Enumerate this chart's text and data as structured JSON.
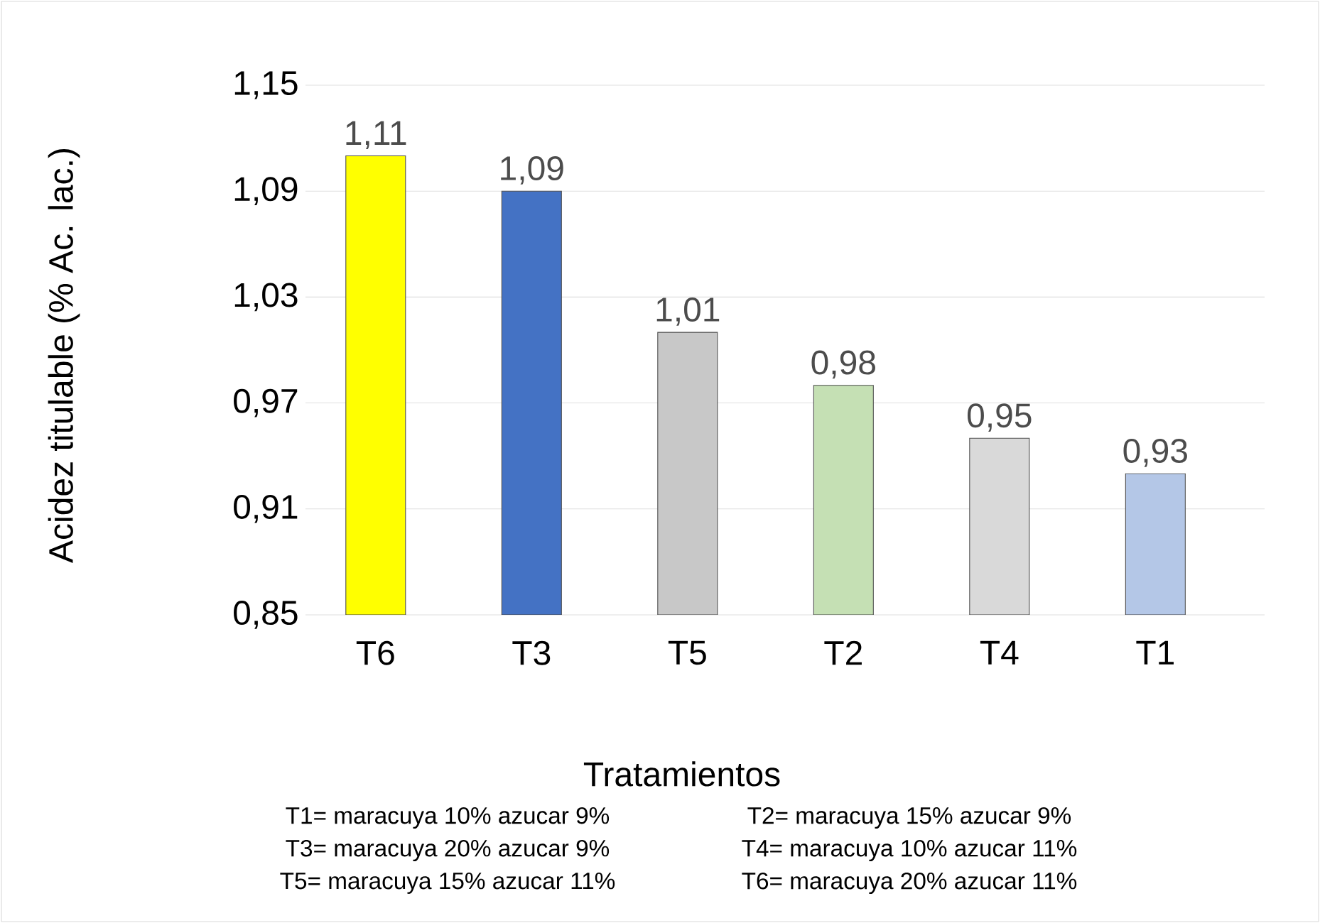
{
  "chart_data": {
    "type": "bar",
    "xlabel": "Tratamientos",
    "ylabel": "Acidez titulable (% Ac. lac.)",
    "categories": [
      "T6",
      "T3",
      "T5",
      "T2",
      "T4",
      "T1"
    ],
    "values": [
      1.11,
      1.09,
      1.01,
      0.98,
      0.95,
      0.93
    ],
    "colors": [
      "#ffff00",
      "#4472c4",
      "#c8c8c8",
      "#c5e0b4",
      "#d9d9d9",
      "#b4c7e7"
    ],
    "value_labels": [
      "1,11",
      "1,09",
      "1,01",
      "0,98",
      "0,95",
      "0,93"
    ],
    "ylim": [
      0.85,
      1.15
    ],
    "yticks": [
      {
        "value": 0.85,
        "label": "0,85"
      },
      {
        "value": 0.91,
        "label": "0,91"
      },
      {
        "value": 0.97,
        "label": "0,97"
      },
      {
        "value": 1.03,
        "label": "1,03"
      },
      {
        "value": 1.09,
        "label": "1,09"
      },
      {
        "value": 1.15,
        "label": "1,15"
      }
    ],
    "grid": "y",
    "annotations": [
      "T1= maracuya 10% azucar 9%",
      "T2= maracuya 15% azucar 9%",
      "T3= maracuya 20% azucar 9%",
      "T4= maracuya 10% azucar 11%",
      "T5= maracuya 15% azucar 11%",
      "T6= maracuya 20% azucar 11%"
    ]
  }
}
